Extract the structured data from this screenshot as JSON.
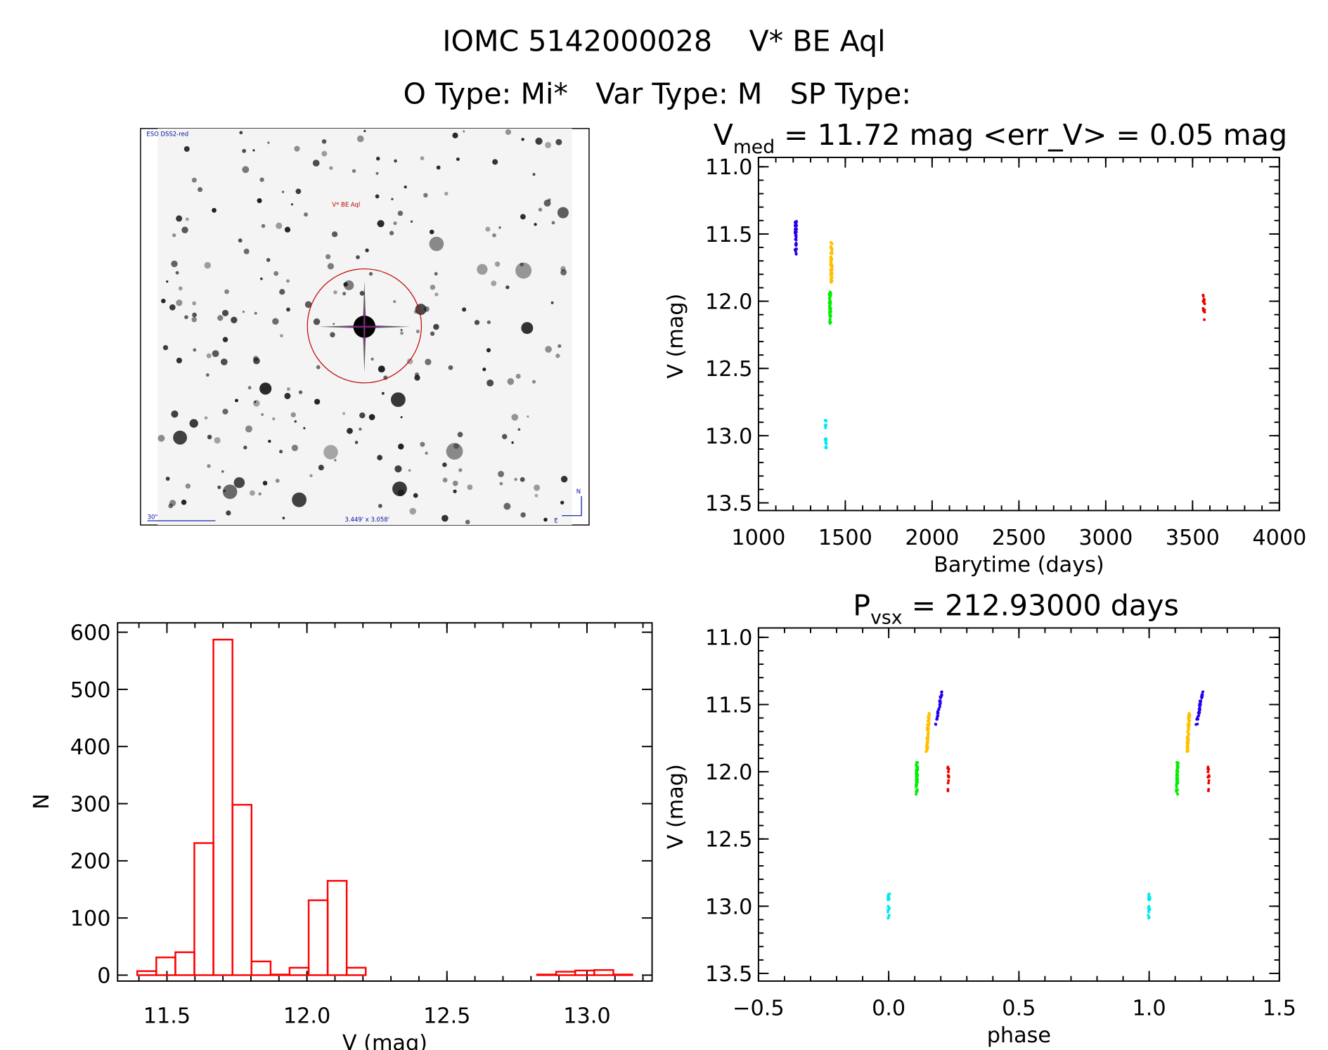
{
  "header": {
    "title": "IOMC 5142000028    V* BE Aql",
    "subtitle": "O Type: Mi*   Var Type: M   SP Type:"
  },
  "finder": {
    "survey_label": "ESO DSS2-red",
    "target_label": "V* BE Aql",
    "scale_label": "30\"",
    "fov_label": "3.449' x 3.058'",
    "north_label": "N",
    "east_label": "E"
  },
  "chart_data": [
    {
      "id": "light_curve",
      "type": "scatter",
      "title_main": "V",
      "title_sub": "med",
      "title_rest": " = 11.72 mag <err_V> = 0.05 mag",
      "xlabel": "Barytime (days)",
      "ylabel": "V (mag)",
      "xlim": [
        1000,
        4000
      ],
      "ylim": [
        13.5,
        11.0
      ],
      "xticks": [
        "1000",
        "1500",
        "2000",
        "2500",
        "3000",
        "3500",
        "4000"
      ],
      "yticks": [
        "11.0",
        "11.5",
        "12.0",
        "12.5",
        "13.0",
        "13.5"
      ],
      "series": [
        {
          "name": "group-blue",
          "color": "#2200ee",
          "x": 1215,
          "y_min": 11.4,
          "y_max": 11.65,
          "n": 40
        },
        {
          "name": "group-orange",
          "color": "#ffc000",
          "x": 1420,
          "y_min": 11.56,
          "y_max": 11.86,
          "n": 60
        },
        {
          "name": "group-green",
          "color": "#00ee00",
          "x": 1412,
          "y_min": 11.93,
          "y_max": 12.17,
          "n": 45
        },
        {
          "name": "group-cyan",
          "color": "#00e8f0",
          "x": 1388,
          "y_min": 12.86,
          "y_max": 13.1,
          "n": 20
        },
        {
          "name": "group-red",
          "color": "#ee0000",
          "x": 3565,
          "y_min": 11.95,
          "y_max": 12.15,
          "n": 14
        }
      ]
    },
    {
      "id": "histogram",
      "type": "bar",
      "xlabel": "V (mag)",
      "ylabel": "N",
      "xlim": [
        11.33,
        13.25
      ],
      "ylim": [
        -12,
        612
      ],
      "xticks": [
        "11.5",
        "12.0",
        "12.5",
        "13.0"
      ],
      "yticks": [
        "0",
        "100",
        "200",
        "300",
        "400",
        "500",
        "600"
      ],
      "bin_start": 11.394,
      "bin_width": 0.068,
      "values": [
        7,
        31,
        40,
        231,
        587,
        298,
        24,
        1,
        13,
        131,
        165,
        13,
        0,
        0,
        0,
        0,
        0,
        0,
        0,
        0,
        0,
        1,
        6,
        8,
        9,
        1
      ],
      "color": "#ff0000"
    },
    {
      "id": "phase_curve",
      "type": "scatter",
      "title_main": "P",
      "title_sub": "vsx",
      "title_rest": " = 212.93000 days",
      "xlabel": "phase",
      "ylabel": "V (mag)",
      "xlim": [
        -0.5,
        1.5
      ],
      "ylim": [
        13.5,
        11.0
      ],
      "xticks": [
        "−0.5",
        "0.0",
        "0.5",
        "1.0",
        "1.5"
      ],
      "yticks": [
        "11.0",
        "11.5",
        "12.0",
        "12.5",
        "13.0",
        "13.5"
      ],
      "series": [
        {
          "name": "group-blue",
          "color": "#2200ee",
          "phase_min": 0.182,
          "phase_max": 0.205,
          "y_min": 11.4,
          "y_max": 11.65,
          "n": 40
        },
        {
          "name": "group-orange",
          "color": "#ffc000",
          "phase_min": 0.146,
          "phase_max": 0.154,
          "y_min": 11.56,
          "y_max": 11.86,
          "n": 60
        },
        {
          "name": "group-green",
          "color": "#00ee00",
          "phase_min": 0.107,
          "phase_max": 0.109,
          "y_min": 11.93,
          "y_max": 12.17,
          "n": 45
        },
        {
          "name": "group-cyan",
          "color": "#00e8f0",
          "phase_min": -0.001,
          "phase_max": 0.001,
          "y_min": 12.86,
          "y_max": 13.1,
          "n": 20
        },
        {
          "name": "group-red",
          "color": "#ee0000",
          "phase_min": 0.228,
          "phase_max": 0.228,
          "y_min": 11.95,
          "y_max": 12.15,
          "n": 14
        }
      ]
    }
  ]
}
